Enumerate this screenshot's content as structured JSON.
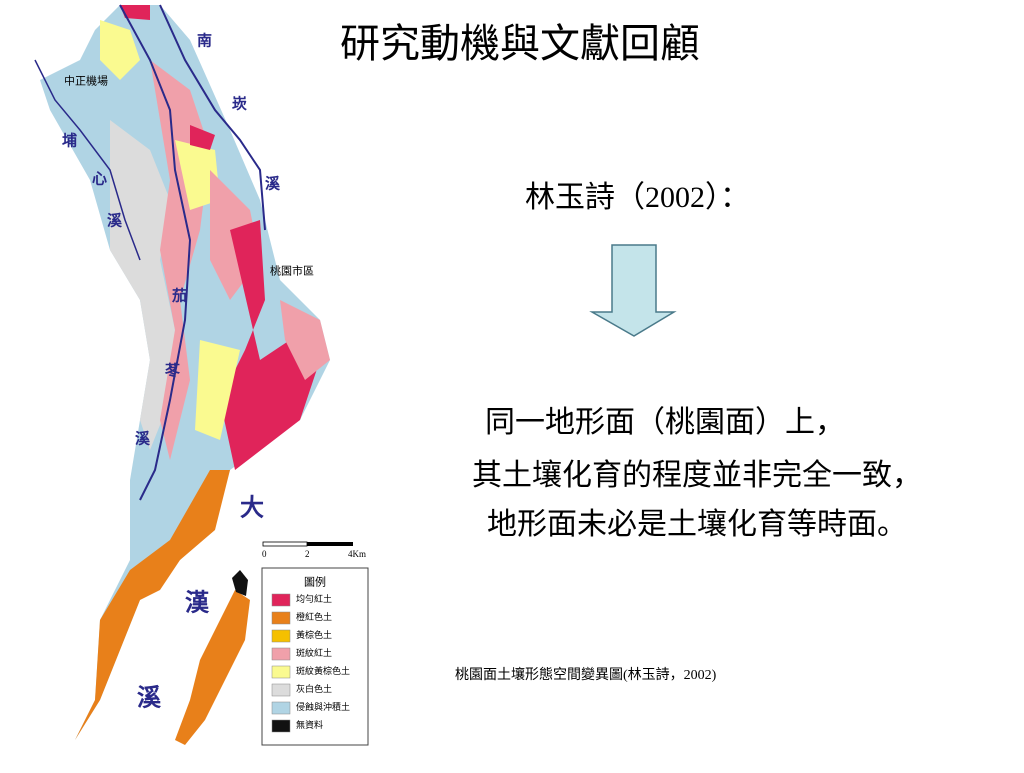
{
  "title": "研究動機與文獻回顧",
  "citation": "林玉詩（2002）：",
  "body_lines": [
    "同一地形面（桃園面）上，",
    "其土壤化育的程度並非完全一致，",
    "地形面未必是土壤化育等時面。"
  ],
  "caption": "桃園面土壤形態空間變異圖(林玉詩，2002)",
  "map": {
    "labels": [
      "南",
      "崁",
      "溪",
      "中正機場",
      "埔",
      "心",
      "溪",
      "桃園市區",
      "茄",
      "苳",
      "溪",
      "大",
      "漢",
      "溪"
    ],
    "scale": [
      "0",
      "2",
      "4Km"
    ],
    "legend": {
      "title": "圖例",
      "items": [
        {
          "label": "均勻紅土",
          "color": "#e0245a"
        },
        {
          "label": "橙紅色土",
          "color": "#e8801a"
        },
        {
          "label": "黃棕色土",
          "color": "#f5c000"
        },
        {
          "label": "斑紋紅土",
          "color": "#f0a0aa"
        },
        {
          "label": "斑紋黃棕色土",
          "color": "#fafa90"
        },
        {
          "label": "灰白色土",
          "color": "#dcdcdc"
        },
        {
          "label": "侵蝕與沖積土",
          "color": "#b0d4e4"
        },
        {
          "label": "無資料",
          "color": "#111111"
        }
      ]
    }
  }
}
